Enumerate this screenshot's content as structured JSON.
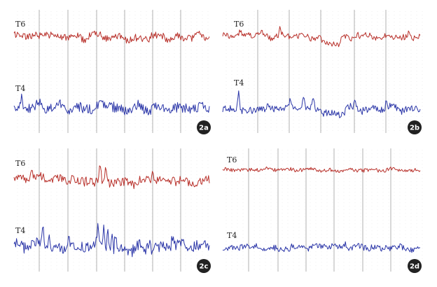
{
  "chart_data": [
    {
      "type": "line",
      "panel": "2a",
      "series": [
        {
          "name": "T6",
          "color": "#b8302a",
          "seed": 11,
          "amp": 5,
          "spikes": [],
          "steps": []
        },
        {
          "name": "T4",
          "color": "#2b36a8",
          "seed": 23,
          "amp": 7,
          "spikes": [
            [
              0.04,
              -12
            ],
            [
              0.25,
              -9
            ],
            [
              0.61,
              -7
            ]
          ],
          "steps": []
        }
      ]
    },
    {
      "type": "line",
      "panel": "2b",
      "series": [
        {
          "name": "T6",
          "color": "#b8302a",
          "seed": 37,
          "amp": 4,
          "spikes": [
            [
              0.29,
              -10
            ],
            [
              0.68,
              -8
            ],
            [
              0.94,
              -7
            ]
          ],
          "steps": [
            [
              0.5,
              0.6,
              10
            ]
          ]
        },
        {
          "name": "T4",
          "color": "#2b36a8",
          "seed": 41,
          "amp": 5,
          "spikes": [
            [
              0.08,
              -35
            ],
            [
              0.34,
              -14
            ],
            [
              0.41,
              -18
            ],
            [
              0.46,
              -12
            ],
            [
              0.67,
              -16
            ],
            [
              0.83,
              -12
            ]
          ],
          "steps": [
            [
              0.5,
              0.62,
              8
            ]
          ]
        }
      ]
    },
    {
      "type": "line",
      "panel": "2c",
      "series": [
        {
          "name": "T6",
          "color": "#b8302a",
          "seed": 53,
          "amp": 6,
          "spikes": [
            [
              0.09,
              -10
            ],
            [
              0.3,
              -14
            ],
            [
              0.44,
              -30
            ],
            [
              0.47,
              -18
            ],
            [
              0.71,
              -12
            ]
          ],
          "steps": []
        },
        {
          "name": "T4",
          "color": "#2b36a8",
          "seed": 67,
          "amp": 8,
          "spikes": [
            [
              0.15,
              -26
            ],
            [
              0.18,
              -22
            ],
            [
              0.28,
              -24
            ],
            [
              0.43,
              -28
            ],
            [
              0.46,
              -30
            ],
            [
              0.48,
              -26
            ],
            [
              0.5,
              -22
            ],
            [
              0.52,
              -24
            ],
            [
              0.69,
              -20
            ],
            [
              0.81,
              -14
            ]
          ],
          "steps": []
        }
      ]
    },
    {
      "type": "line",
      "panel": "2d",
      "series": [
        {
          "name": "T6",
          "color": "#b8302a",
          "seed": 79,
          "amp": 2.5,
          "spikes": [],
          "steps": []
        },
        {
          "name": "T4",
          "color": "#2b36a8",
          "seed": 83,
          "amp": 4,
          "spikes": [
            [
              0.35,
              -8
            ],
            [
              0.62,
              -7
            ]
          ],
          "steps": []
        }
      ]
    }
  ]
}
